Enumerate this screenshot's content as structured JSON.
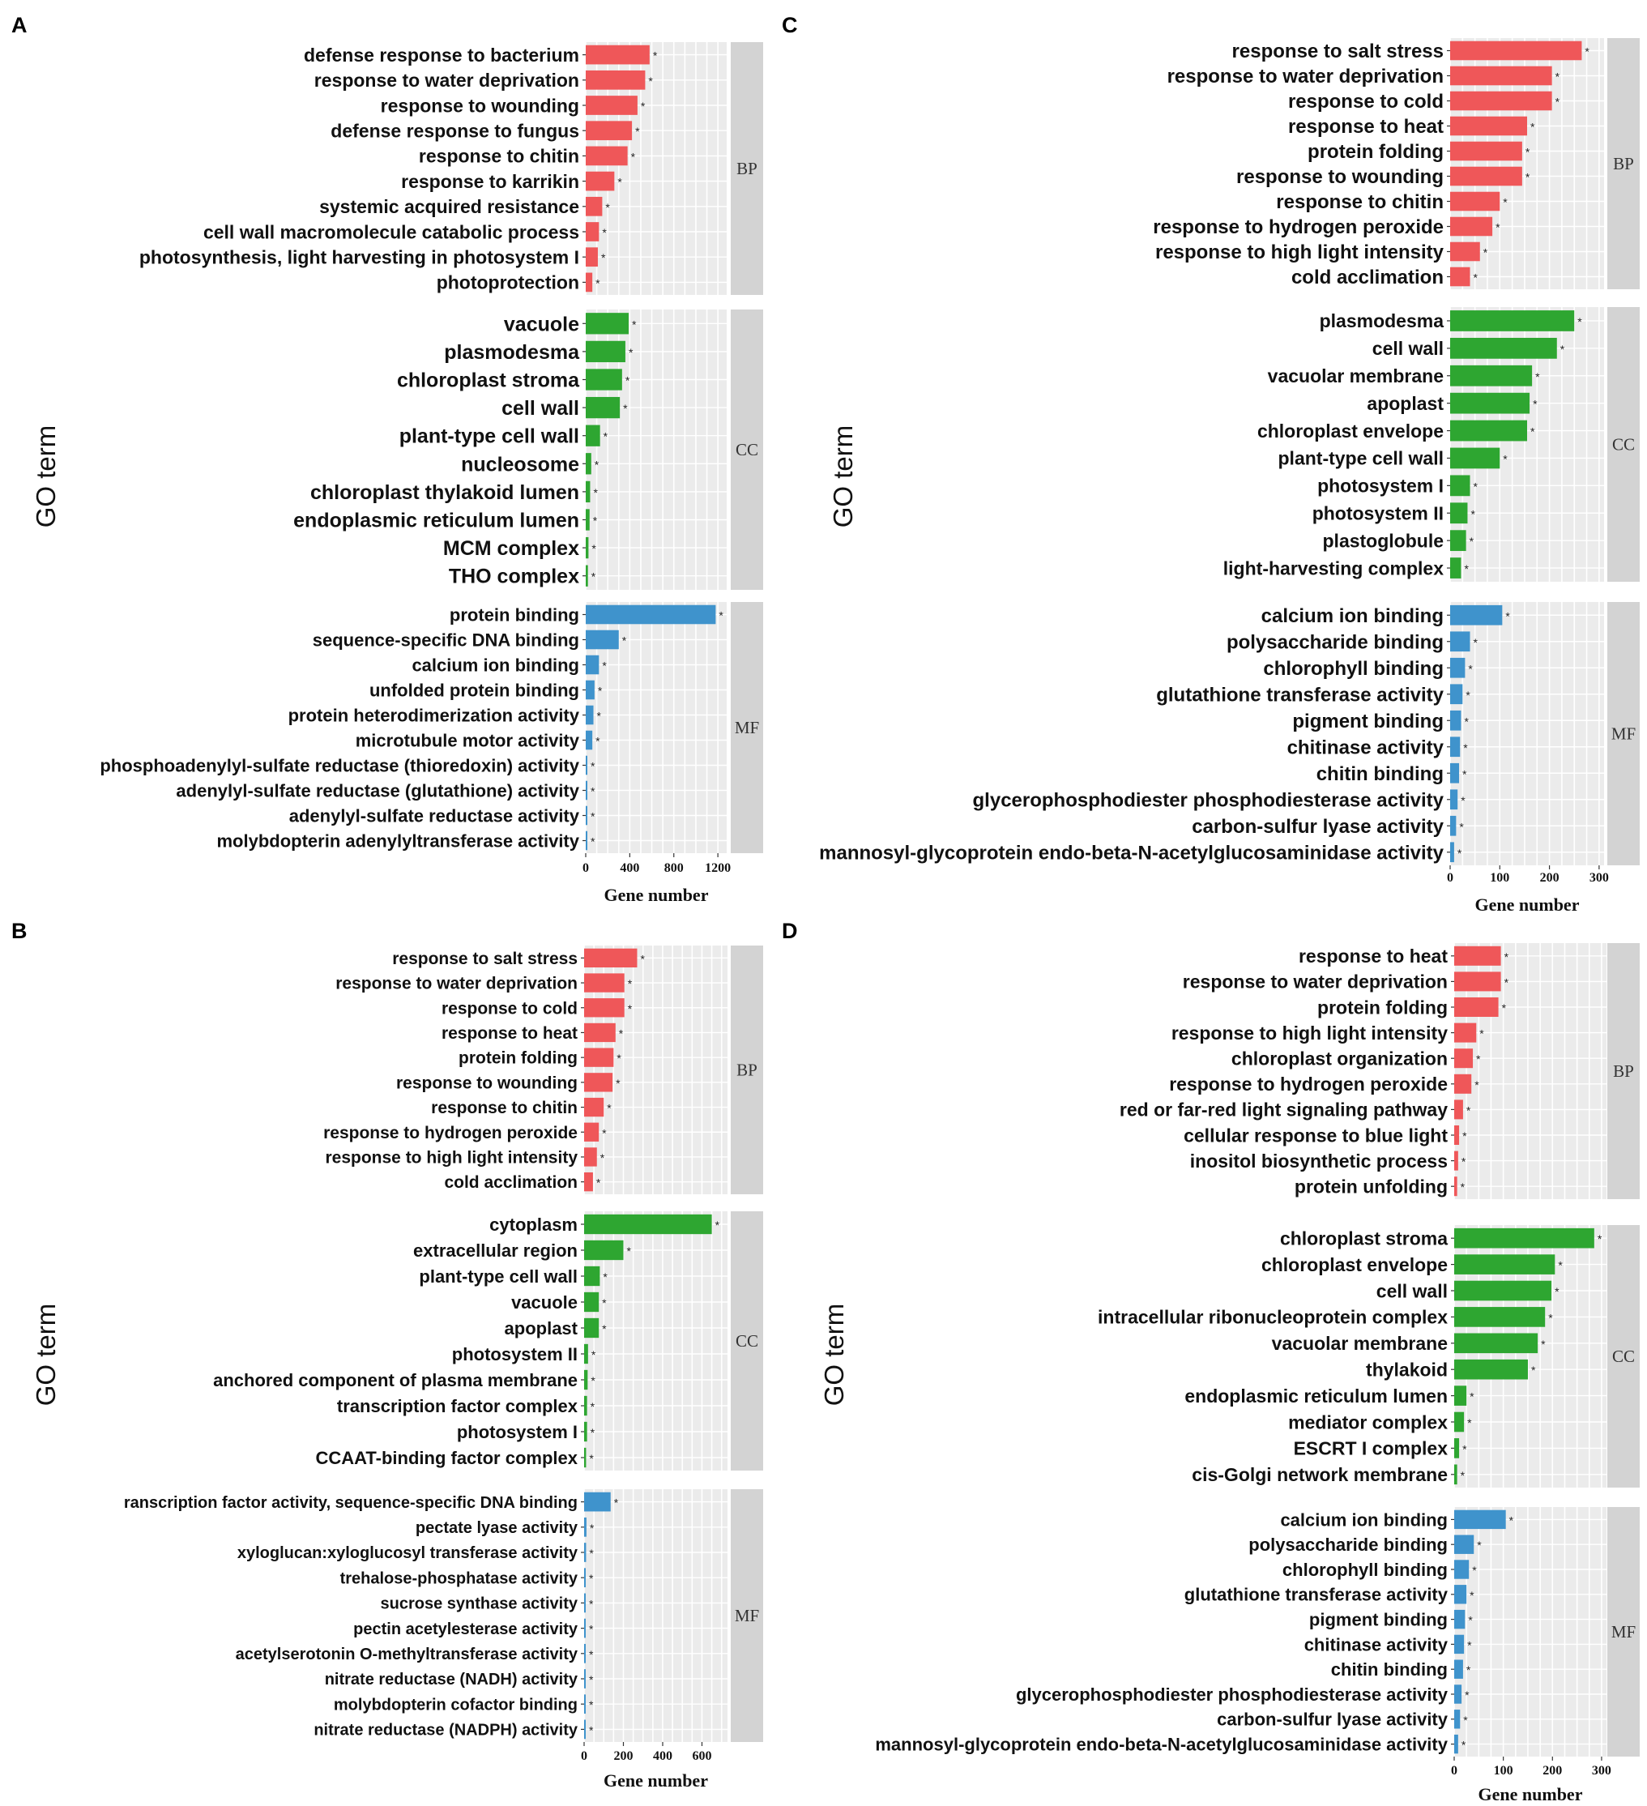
{
  "colors": {
    "BP": "#ef5759",
    "CC": "#2ea631",
    "MF": "#3f93cc",
    "panel": "#ebebeb",
    "strip": "#d3d3d3",
    "grid": "#ffffff"
  },
  "chart_data": [
    {
      "panel": "A",
      "type": "bar",
      "orientation": "horizontal",
      "xlabel": "Gene number",
      "ylabel": "GO term",
      "xticks": [
        0,
        400,
        800,
        1200
      ],
      "xlim": [
        0,
        1280
      ],
      "groups": [
        {
          "name": "BP",
          "categories": [
            "defense response to bacterium",
            "response to water deprivation",
            "response to wounding",
            "defense response to fungus",
            "response to chitin",
            "response to karrikin",
            "systemic acquired resistance",
            "cell wall macromolecule catabolic process",
            "photosynthesis, light harvesting in photosystem I",
            "photoprotection"
          ],
          "values": [
            580,
            540,
            470,
            420,
            380,
            260,
            150,
            120,
            110,
            60
          ]
        },
        {
          "name": "CC",
          "categories": [
            "vacuole",
            "plasmodesma",
            "chloroplast stroma",
            "cell wall",
            "plant-type cell wall",
            "nucleosome",
            "chloroplast thylakoid lumen",
            "endoplasmic reticulum lumen",
            "MCM complex",
            "THO complex"
          ],
          "values": [
            390,
            360,
            330,
            310,
            130,
            50,
            40,
            35,
            25,
            20
          ]
        },
        {
          "name": "MF",
          "categories": [
            "protein binding",
            "sequence-specific DNA binding",
            "calcium ion binding",
            "unfolded protein binding",
            "protein heterodimerization activity",
            "microtubule motor activity",
            "phosphoadenylyl-sulfate reductase (thioredoxin) activity",
            "adenylyl-sulfate reductase (glutathione) activity",
            "adenylyl-sulfate reductase activity",
            "molybdopterin adenylyltransferase activity"
          ],
          "values": [
            1180,
            300,
            120,
            80,
            70,
            60,
            12,
            10,
            10,
            8
          ]
        }
      ]
    },
    {
      "panel": "B",
      "type": "bar",
      "orientation": "horizontal",
      "xlabel": "Gene number",
      "ylabel": "GO term",
      "xticks": [
        0,
        200,
        400,
        600
      ],
      "xlim": [
        0,
        730
      ],
      "groups": [
        {
          "name": "BP",
          "categories": [
            "response to salt stress",
            "response to water deprivation",
            "response to cold",
            "response to heat",
            "protein folding",
            "response to wounding",
            "response to chitin",
            "response to hydrogen peroxide",
            "response to high light intensity",
            "cold acclimation"
          ],
          "values": [
            270,
            205,
            205,
            160,
            150,
            145,
            100,
            75,
            65,
            45
          ]
        },
        {
          "name": "CC",
          "categories": [
            "cytoplasm",
            "extracellular region",
            "plant-type cell wall",
            "vacuole",
            "apoplast",
            "photosystem II",
            "anchored component of plasma membrane",
            "transcription factor complex",
            "photosystem I",
            "CCAAT-binding factor complex"
          ],
          "values": [
            650,
            200,
            80,
            75,
            75,
            20,
            18,
            15,
            15,
            10
          ]
        },
        {
          "name": "MF",
          "categories": [
            "ranscription factor activity, sequence-specific DNA binding",
            "pectate lyase activity",
            "xyloglucan:xyloglucosyl transferase activity",
            "trehalose-phosphatase activity",
            "sucrose synthase activity",
            "pectin acetylesterase activity",
            "acetylserotonin O-methyltransferase activity",
            "nitrate reductase (NADH) activity",
            "molybdopterin cofactor binding",
            "nitrate reductase (NADPH) activity"
          ],
          "values": [
            135,
            12,
            10,
            8,
            8,
            7,
            6,
            5,
            5,
            5
          ]
        }
      ]
    },
    {
      "panel": "C",
      "type": "bar",
      "orientation": "horizontal",
      "xlabel": "Gene number",
      "ylabel": "GO term",
      "xticks": [
        0,
        100,
        200,
        300
      ],
      "xlim": [
        0,
        310
      ],
      "groups": [
        {
          "name": "BP",
          "categories": [
            "response to salt stress",
            "response to water deprivation",
            "response to cold",
            "response to heat",
            "protein folding",
            "response to wounding",
            "response to chitin",
            "response to hydrogen peroxide",
            "response to high light intensity",
            "cold acclimation"
          ],
          "values": [
            265,
            205,
            205,
            155,
            145,
            145,
            100,
            85,
            60,
            40
          ]
        },
        {
          "name": "CC",
          "categories": [
            "plasmodesma",
            "cell wall",
            "vacuolar membrane",
            "apoplast",
            "chloroplast envelope",
            "plant-type cell wall",
            "photosystem I",
            "photosystem II",
            "plastoglobule",
            "light-harvesting complex"
          ],
          "values": [
            250,
            215,
            165,
            160,
            155,
            100,
            40,
            35,
            32,
            22
          ]
        },
        {
          "name": "MF",
          "categories": [
            "calcium ion binding",
            "polysaccharide binding",
            "chlorophyll binding",
            "glutathione transferase activity",
            "pigment binding",
            "chitinase activity",
            "chitin binding",
            "glycerophosphodiester phosphodiesterase activity",
            "carbon-sulfur lyase activity",
            "mannosyl-glycoprotein endo-beta-N-acetylglucosaminidase activity"
          ],
          "values": [
            105,
            40,
            30,
            25,
            22,
            20,
            18,
            15,
            12,
            8
          ]
        }
      ]
    },
    {
      "panel": "D",
      "type": "bar",
      "orientation": "horizontal",
      "xlabel": "Gene number",
      "ylabel": "GO term",
      "xticks": [
        0,
        100,
        200,
        300
      ],
      "xlim": [
        0,
        310
      ],
      "groups": [
        {
          "name": "BP",
          "categories": [
            "response to heat",
            "response to water deprivation",
            "protein folding",
            "response to high light intensity",
            "chloroplast organization",
            "response to hydrogen peroxide",
            "red or far-red light signaling pathway",
            "cellular response to blue light",
            "inositol biosynthetic process",
            "protein unfolding"
          ],
          "values": [
            95,
            95,
            90,
            45,
            38,
            35,
            18,
            10,
            8,
            6
          ]
        },
        {
          "name": "CC",
          "categories": [
            "chloroplast stroma",
            "chloroplast envelope",
            "cell wall",
            "intracellular ribonucleoprotein complex",
            "vacuolar membrane",
            "thylakoid",
            "endoplasmic reticulum lumen",
            "mediator complex",
            "ESCRT I complex",
            "cis-Golgi network membrane"
          ],
          "values": [
            285,
            205,
            198,
            185,
            170,
            150,
            25,
            20,
            10,
            6
          ]
        },
        {
          "name": "MF",
          "categories": [
            "calcium ion binding",
            "polysaccharide binding",
            "chlorophyll binding",
            "glutathione transferase activity",
            "pigment binding",
            "chitinase activity",
            "chitin binding",
            "glycerophosphodiester phosphodiesterase activity",
            "carbon-sulfur lyase activity",
            "mannosyl-glycoprotein endo-beta-N-acetylglucosaminidase activity"
          ],
          "values": [
            105,
            40,
            30,
            25,
            22,
            20,
            18,
            15,
            12,
            8
          ]
        }
      ]
    }
  ]
}
